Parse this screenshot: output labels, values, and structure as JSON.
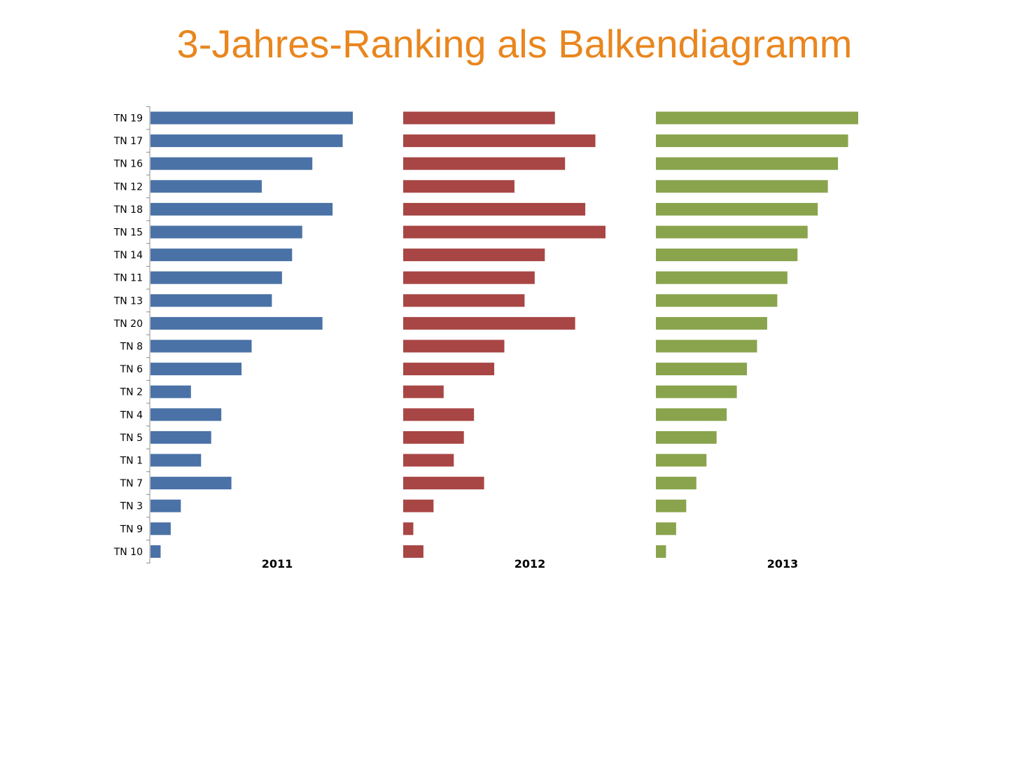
{
  "page": {
    "title": "3-Jahres-Ranking als Balkendiagramm"
  },
  "chart_data": {
    "type": "bar",
    "orientation": "horizontal",
    "title": "3-Jahres-Ranking als Balkendiagramm",
    "categories": [
      "TN 19",
      "TN 17",
      "TN 16",
      "TN 12",
      "TN 18",
      "TN 15",
      "TN 14",
      "TN 11",
      "TN 13",
      "TN 20",
      "TN 8",
      "TN 6",
      "TN 2",
      "TN 4",
      "TN 5",
      "TN 1",
      "TN 7",
      "TN 3",
      "TN 9",
      "TN 10"
    ],
    "series": [
      {
        "name": "2011",
        "color": "#4A72A6",
        "values": [
          20,
          19,
          16,
          11,
          18,
          15,
          14,
          13,
          12,
          17,
          10,
          9,
          4,
          7,
          6,
          5,
          8,
          3,
          2,
          1
        ]
      },
      {
        "name": "2012",
        "color": "#A84645",
        "values": [
          15,
          19,
          16,
          11,
          18,
          20,
          14,
          13,
          12,
          17,
          10,
          9,
          4,
          7,
          6,
          5,
          8,
          3,
          1,
          2
        ]
      },
      {
        "name": "2013",
        "color": "#89A44C",
        "values": [
          20,
          19,
          18,
          17,
          16,
          15,
          14,
          13,
          12,
          11,
          10,
          9,
          8,
          7,
          6,
          5,
          4,
          3,
          2,
          1
        ]
      }
    ],
    "grid": false,
    "legend": "none"
  }
}
